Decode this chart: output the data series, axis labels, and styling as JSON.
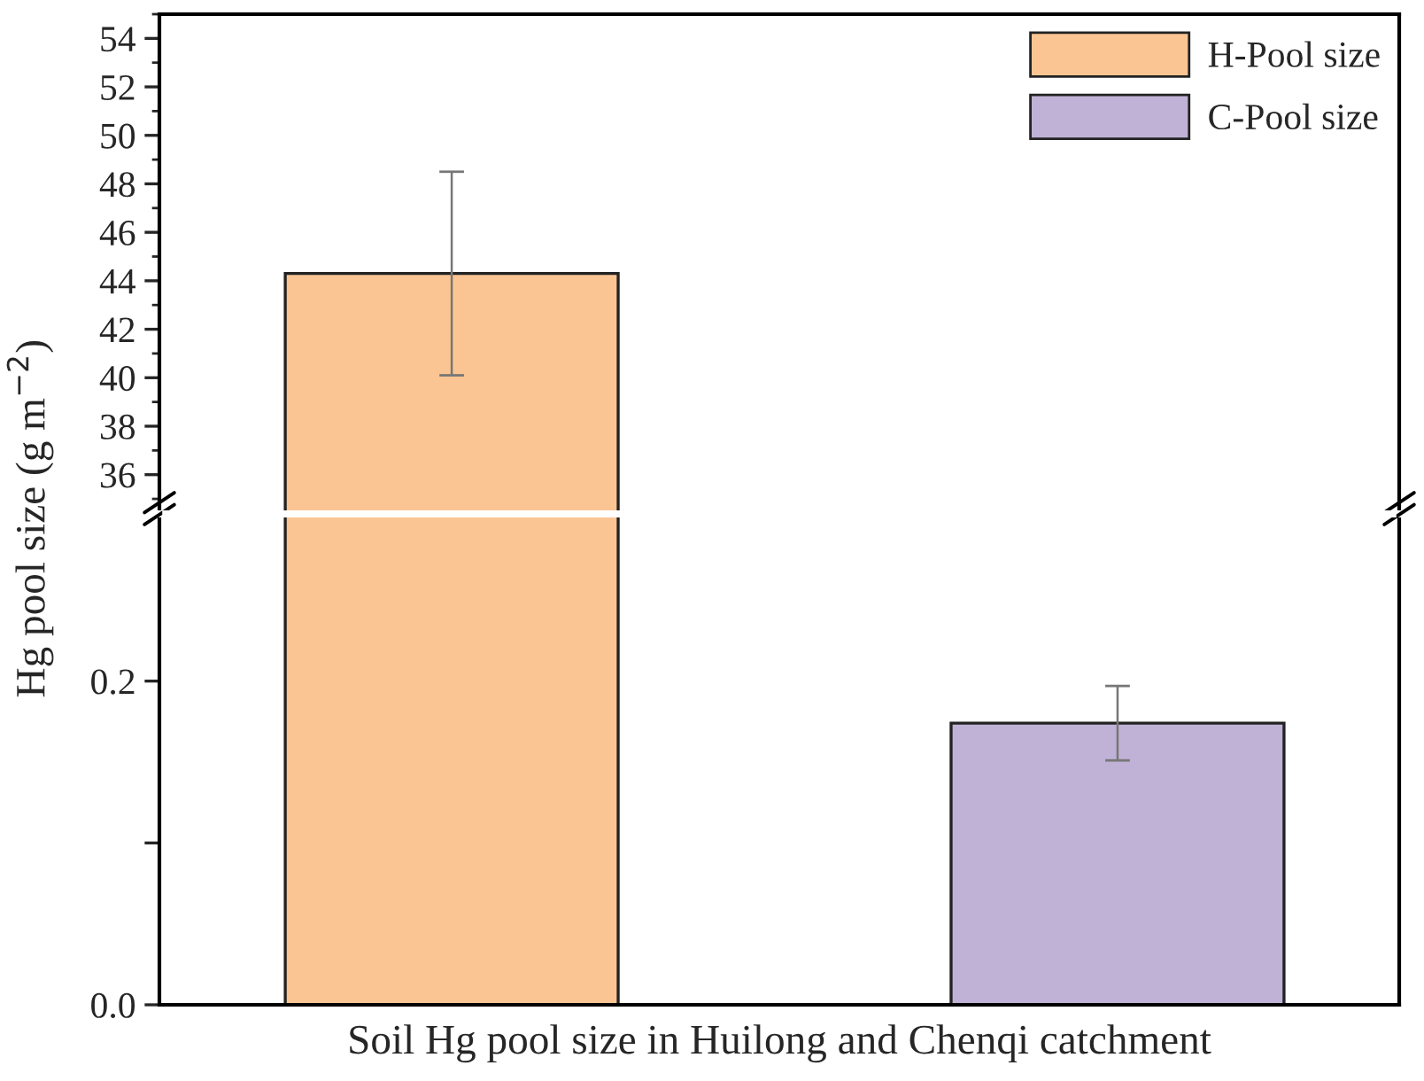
{
  "chart_data": [
    {
      "type": "bar",
      "categories": [
        null,
        null
      ],
      "ylabel": "Hg pool size (g m$^{−2}$)",
      "ylim": [
        34.6,
        55
      ],
      "yticks": [
        36,
        38,
        40,
        42,
        44,
        46,
        48,
        50,
        52,
        54
      ],
      "legend": "top right",
      "tick_labels": "y",
      "series": [
        {
          "name": "H-Pool size",
          "color": "#fbc593",
          "values": [
            44.3,
            null
          ],
          "errors": [
            4.2,
            null
          ]
        },
        {
          "name": "C-Pool size",
          "color": "#c0b2d6",
          "values": [
            null,
            null
          ]
        }
      ]
    },
    {
      "type": "bar",
      "categories": [
        null,
        null
      ],
      "xlabel": "Soil Hg pool size in Huilong and Chenqi catchment",
      "ylim": [
        0,
        0.3
      ],
      "yticks": [
        {
          "value": 0,
          "label": "0.0"
        },
        {
          "value": 0.1,
          "label": null
        },
        0.2
      ],
      "tick_labels": "y",
      "series": [
        {
          "color": "#c0b2d6",
          "values": [
            null,
            0.174
          ],
          "errors": [
            null,
            0.023
          ]
        }
      ]
    }
  ]
}
